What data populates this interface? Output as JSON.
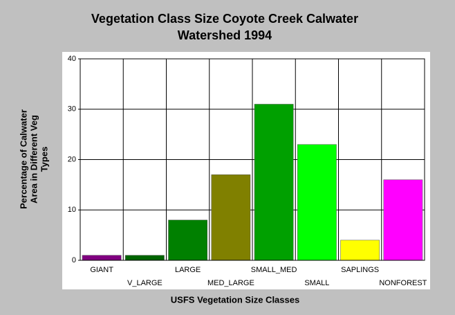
{
  "chart_data": {
    "type": "bar",
    "title": [
      "Vegetation Class Size Coyote Creek Calwater",
      "Watershed 1994"
    ],
    "xlabel": "USFS Vegetation Size Classes",
    "ylabel": [
      "Percentage of Calwater",
      "Area in Different Veg",
      "Types"
    ],
    "categories": [
      "GIANT",
      "V_LARGE",
      "LARGE",
      "MED_LARGE",
      "SMALL_MED",
      "SMALL",
      "SAPLINGS",
      "NONFOREST"
    ],
    "values": [
      1,
      1,
      8,
      17,
      31,
      23,
      4,
      16
    ],
    "colors": [
      "#800080",
      "#006400",
      "#008000",
      "#808000",
      "#00a000",
      "#00ff00",
      "#ffff00",
      "#ff00ff"
    ],
    "ylim": [
      0,
      40
    ],
    "yticks": [
      0,
      10,
      20,
      30,
      40
    ],
    "grid": true
  }
}
